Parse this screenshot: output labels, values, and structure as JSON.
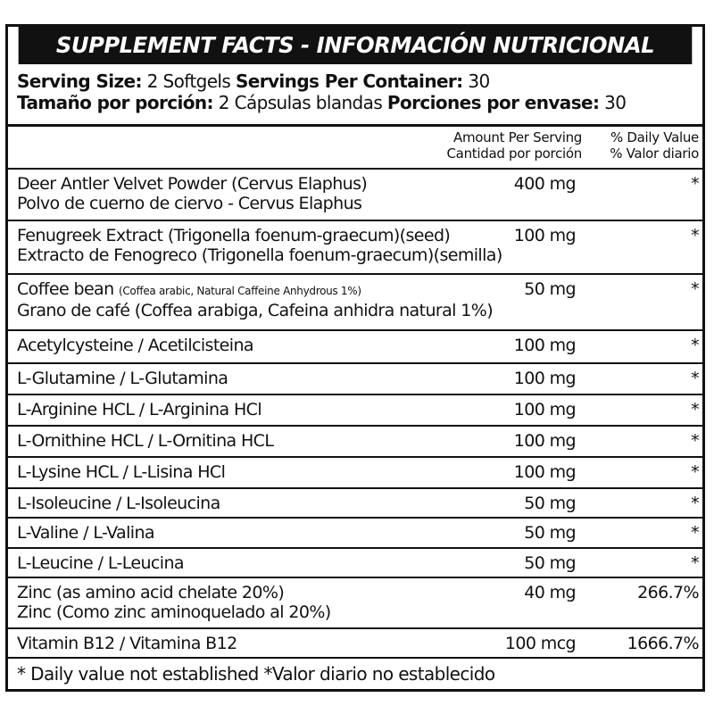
{
  "title": "SUPPLEMENT FACTS - INFORMACIÓN NUTRICIONAL",
  "serving": {
    "en_size_label": "Serving Size:",
    "en_size": " 2 Softgels ",
    "en_per_label": "Servings Per Container:",
    "en_per": " 30",
    "es_size_label": "Tamaño por porción:",
    "es_size": " 2 Cápsulas blandas ",
    "es_per_label": "Porciones por envase:",
    "es_per": " 30"
  },
  "header": {
    "amount_en": "Amount Per Serving",
    "amount_es": "Cantidad por porción",
    "dv_en": "% Daily Value",
    "dv_es": "% Valor diario"
  },
  "rows": [
    {
      "line1": "Deer Antler Velvet Powder (Cervus Elaphus)",
      "line2": "Polvo de cuerno de ciervo - Cervus Elaphus",
      "amount": "400 mg",
      "dv": "*"
    },
    {
      "line1": "Fenugreek Extract (Trigonella foenum-graecum)(seed)",
      "line2": "Extracto de Fenogreco (Trigonella foenum-graecum)(semilla)",
      "amount": "100 mg",
      "dv": "*"
    },
    {
      "line1": "Coffee bean ",
      "line1_small": "(Coffea arabic, Natural Caffeine Anhydrous 1%)",
      "line2": "Grano de café (Coffea arabiga, Cafeina anhidra natural 1%)",
      "amount": "50 mg",
      "dv": "*"
    },
    {
      "line1": "Acetylcysteine / Acetilcisteina",
      "amount": "100 mg",
      "dv": "*"
    },
    {
      "line1": "L-Glutamine / L-Glutamina",
      "amount": "100 mg",
      "dv": "*"
    },
    {
      "line1": "L-Arginine HCL / L-Arginina HCl",
      "amount": "100 mg",
      "dv": "*"
    },
    {
      "line1": "L-Ornithine HCL / L-Ornitina HCL",
      "amount": "100 mg",
      "dv": "*"
    },
    {
      "line1": "L-Lysine HCL / L-Lisina HCl",
      "amount": "100 mg",
      "dv": "*"
    },
    {
      "line1": "L-Isoleucine / L-Isoleucina",
      "amount": "50 mg",
      "dv": "*"
    },
    {
      "line1": "L-Valine / L-Valina",
      "amount": "50 mg",
      "dv": "*"
    },
    {
      "line1": "L-Leucine / L-Leucina",
      "amount": "50 mg",
      "dv": "*"
    },
    {
      "line1": "Zinc (as amino acid chelate 20%)",
      "line2": "Zinc (Como zinc aminoquelado al 20%)",
      "amount": "40 mg",
      "dv": "266.7%"
    },
    {
      "line1": "Vitamin B12  / Vitamina B12",
      "amount": "100 mcg",
      "dv": "1666.7%"
    }
  ],
  "footnote": "* Daily value not established *Valor diario no establecido"
}
